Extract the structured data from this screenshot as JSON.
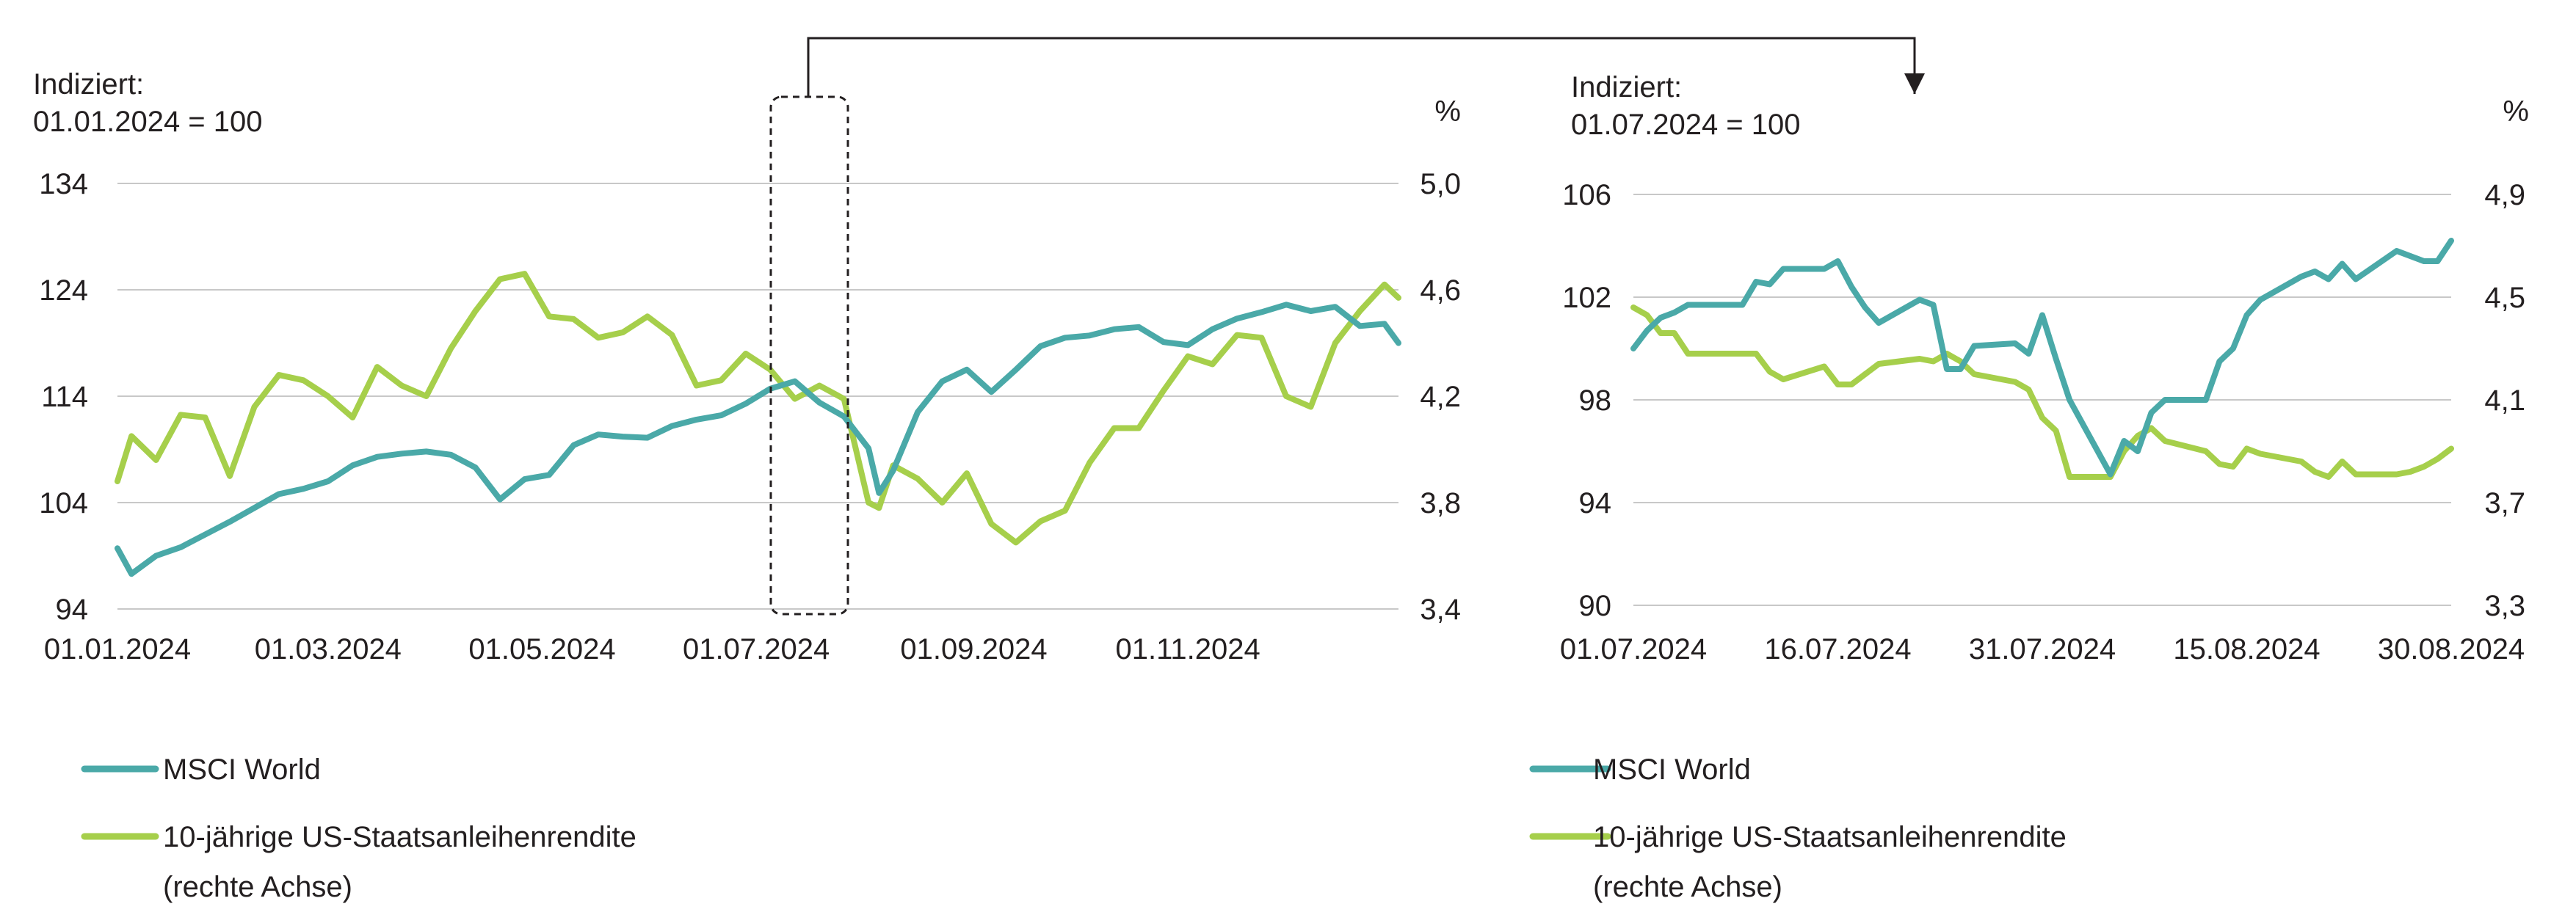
{
  "colors": {
    "msci": "#4aa9a8",
    "bond": "#a6cf4b",
    "grid": "#c8c8c8",
    "text": "#231f20"
  },
  "chart_data": [
    {
      "type": "line",
      "title": "",
      "left_axis_title": [
        "Indiziert:",
        "01.01.2024 = 100"
      ],
      "right_axis_title": "%",
      "x_tick_labels": [
        "01.01.2024",
        "01.03.2024",
        "01.05.2024",
        "01.07.2024",
        "01.09.2024",
        "01.11.2024"
      ],
      "left_ticks": [
        "134",
        "124",
        "114",
        "104",
        "94"
      ],
      "right_ticks": [
        "5,0",
        "4,6",
        "4,2",
        "3,8",
        "3,4"
      ],
      "ylim_left": [
        94,
        134
      ],
      "ylim_right": [
        3.4,
        5.0
      ],
      "grid": true,
      "legend_position": "bottom-left",
      "series": [
        {
          "name": "MSCI World",
          "axis": "left",
          "x": [
            "2024-01-01",
            "2024-01-05",
            "2024-01-12",
            "2024-01-19",
            "2024-01-26",
            "2024-02-02",
            "2024-02-09",
            "2024-02-16",
            "2024-02-23",
            "2024-03-01",
            "2024-03-08",
            "2024-03-15",
            "2024-03-22",
            "2024-03-29",
            "2024-04-05",
            "2024-04-12",
            "2024-04-19",
            "2024-04-26",
            "2024-05-03",
            "2024-05-10",
            "2024-05-17",
            "2024-05-24",
            "2024-05-31",
            "2024-06-07",
            "2024-06-14",
            "2024-06-21",
            "2024-06-28",
            "2024-07-05",
            "2024-07-12",
            "2024-07-19",
            "2024-07-26",
            "2024-08-02",
            "2024-08-05",
            "2024-08-09",
            "2024-08-16",
            "2024-08-23",
            "2024-08-30",
            "2024-09-06",
            "2024-09-13",
            "2024-09-20",
            "2024-09-27",
            "2024-10-04",
            "2024-10-11",
            "2024-10-18",
            "2024-10-25",
            "2024-11-01",
            "2024-11-08",
            "2024-11-15",
            "2024-11-22",
            "2024-11-29",
            "2024-12-06",
            "2024-12-13",
            "2024-12-20",
            "2024-12-27",
            "2024-12-31"
          ],
          "values": [
            99.7,
            97.3,
            99.0,
            99.8,
            101.0,
            102.2,
            103.5,
            104.8,
            105.3,
            106.0,
            107.5,
            108.3,
            108.6,
            108.8,
            108.5,
            107.3,
            104.3,
            106.2,
            106.6,
            109.4,
            110.4,
            110.2,
            110.1,
            111.2,
            111.8,
            112.2,
            113.3,
            114.7,
            115.4,
            113.4,
            112.1,
            109.1,
            104.9,
            107.0,
            112.5,
            115.4,
            116.5,
            114.4,
            116.5,
            118.7,
            119.5,
            119.7,
            120.3,
            120.5,
            119.1,
            118.8,
            120.3,
            121.3,
            121.9,
            122.6,
            122.0,
            122.4,
            120.6,
            120.8,
            119.0
          ]
        },
        {
          "name": "10-jährige US-Staatsanleihenrendite",
          "name_line2": "(rechte Achse)",
          "axis": "right",
          "x": [
            "2024-01-01",
            "2024-01-05",
            "2024-01-12",
            "2024-01-19",
            "2024-01-26",
            "2024-02-02",
            "2024-02-09",
            "2024-02-16",
            "2024-02-23",
            "2024-03-01",
            "2024-03-08",
            "2024-03-15",
            "2024-03-22",
            "2024-03-29",
            "2024-04-05",
            "2024-04-12",
            "2024-04-19",
            "2024-04-26",
            "2024-05-03",
            "2024-05-10",
            "2024-05-17",
            "2024-05-24",
            "2024-05-31",
            "2024-06-07",
            "2024-06-14",
            "2024-06-21",
            "2024-06-28",
            "2024-07-05",
            "2024-07-12",
            "2024-07-19",
            "2024-07-26",
            "2024-08-02",
            "2024-08-05",
            "2024-08-09",
            "2024-08-16",
            "2024-08-23",
            "2024-08-30",
            "2024-09-06",
            "2024-09-13",
            "2024-09-20",
            "2024-09-27",
            "2024-10-04",
            "2024-10-11",
            "2024-10-18",
            "2024-10-25",
            "2024-11-01",
            "2024-11-08",
            "2024-11-15",
            "2024-11-22",
            "2024-11-29",
            "2024-12-06",
            "2024-12-13",
            "2024-12-20",
            "2024-12-27",
            "2024-12-31"
          ],
          "values": [
            3.88,
            4.05,
            3.96,
            4.13,
            4.12,
            3.9,
            4.16,
            4.28,
            4.26,
            4.2,
            4.12,
            4.31,
            4.24,
            4.2,
            4.38,
            4.52,
            4.64,
            4.66,
            4.5,
            4.49,
            4.42,
            4.44,
            4.5,
            4.43,
            4.24,
            4.26,
            4.36,
            4.3,
            4.19,
            4.24,
            4.19,
            3.8,
            3.78,
            3.94,
            3.89,
            3.8,
            3.91,
            3.72,
            3.65,
            3.73,
            3.77,
            3.95,
            4.08,
            4.08,
            4.22,
            4.35,
            4.32,
            4.43,
            4.42,
            4.2,
            4.16,
            4.4,
            4.52,
            4.62,
            4.57
          ]
        }
      ]
    },
    {
      "type": "line",
      "title": "",
      "left_axis_title": [
        "Indiziert:",
        "01.07.2024 = 100"
      ],
      "right_axis_title": "%",
      "x_tick_labels": [
        "01.07.2024",
        "16.07.2024",
        "31.07.2024",
        "15.08.2024",
        "30.08.2024"
      ],
      "left_ticks": [
        "106",
        "102",
        "98",
        "94",
        "90"
      ],
      "right_ticks": [
        "4,9",
        "4,5",
        "4,1",
        "3,7",
        "3,3"
      ],
      "ylim_left": [
        90,
        106
      ],
      "ylim_right": [
        3.3,
        4.9
      ],
      "grid": true,
      "legend_position": "bottom-left",
      "series": [
        {
          "name": "MSCI World",
          "axis": "left",
          "x": [
            "2024-07-01",
            "2024-07-02",
            "2024-07-03",
            "2024-07-04",
            "2024-07-05",
            "2024-07-08",
            "2024-07-09",
            "2024-07-10",
            "2024-07-11",
            "2024-07-12",
            "2024-07-15",
            "2024-07-16",
            "2024-07-17",
            "2024-07-18",
            "2024-07-19",
            "2024-07-22",
            "2024-07-23",
            "2024-07-24",
            "2024-07-25",
            "2024-07-26",
            "2024-07-29",
            "2024-07-30",
            "2024-07-31",
            "2024-08-01",
            "2024-08-02",
            "2024-08-05",
            "2024-08-06",
            "2024-08-07",
            "2024-08-08",
            "2024-08-09",
            "2024-08-12",
            "2024-08-13",
            "2024-08-14",
            "2024-08-15",
            "2024-08-16",
            "2024-08-19",
            "2024-08-20",
            "2024-08-21",
            "2024-08-22",
            "2024-08-23",
            "2024-08-26",
            "2024-08-27",
            "2024-08-28",
            "2024-08-29",
            "2024-08-30"
          ],
          "values": [
            100.0,
            100.7,
            101.2,
            101.4,
            101.7,
            101.7,
            101.7,
            102.6,
            102.5,
            103.1,
            103.1,
            103.4,
            102.4,
            101.6,
            101.0,
            101.9,
            101.7,
            99.2,
            99.2,
            100.1,
            100.2,
            99.8,
            101.3,
            99.6,
            98.0,
            95.1,
            96.4,
            96.0,
            97.5,
            98.0,
            98.0,
            99.5,
            100.0,
            101.3,
            101.9,
            102.8,
            103.0,
            102.7,
            103.3,
            102.7,
            103.8,
            103.6,
            103.4,
            103.4,
            104.2
          ]
        },
        {
          "name": "10-jährige US-Staatsanleihenrendite",
          "name_line2": "(rechte Achse)",
          "axis": "right",
          "x": [
            "2024-07-01",
            "2024-07-02",
            "2024-07-03",
            "2024-07-04",
            "2024-07-05",
            "2024-07-08",
            "2024-07-09",
            "2024-07-10",
            "2024-07-11",
            "2024-07-12",
            "2024-07-15",
            "2024-07-16",
            "2024-07-17",
            "2024-07-18",
            "2024-07-19",
            "2024-07-22",
            "2024-07-23",
            "2024-07-24",
            "2024-07-25",
            "2024-07-26",
            "2024-07-29",
            "2024-07-30",
            "2024-07-31",
            "2024-08-01",
            "2024-08-02",
            "2024-08-05",
            "2024-08-06",
            "2024-08-07",
            "2024-08-08",
            "2024-08-09",
            "2024-08-12",
            "2024-08-13",
            "2024-08-14",
            "2024-08-15",
            "2024-08-16",
            "2024-08-19",
            "2024-08-20",
            "2024-08-21",
            "2024-08-22",
            "2024-08-23",
            "2024-08-26",
            "2024-08-27",
            "2024-08-28",
            "2024-08-29",
            "2024-08-30"
          ],
          "values": [
            4.46,
            4.43,
            4.36,
            4.36,
            4.28,
            4.28,
            4.28,
            4.28,
            4.21,
            4.18,
            4.23,
            4.16,
            4.16,
            4.2,
            4.24,
            4.26,
            4.25,
            4.28,
            4.25,
            4.2,
            4.17,
            4.14,
            4.03,
            3.98,
            3.8,
            3.8,
            3.9,
            3.96,
            3.99,
            3.94,
            3.9,
            3.85,
            3.84,
            3.91,
            3.89,
            3.86,
            3.82,
            3.8,
            3.86,
            3.81,
            3.81,
            3.82,
            3.84,
            3.87,
            3.91
          ]
        }
      ]
    }
  ],
  "legend": {
    "msci": "MSCI World",
    "bond_line1": "10-jährige US-Staatsanleihenrendite",
    "bond_line2": "(rechte Achse)"
  }
}
